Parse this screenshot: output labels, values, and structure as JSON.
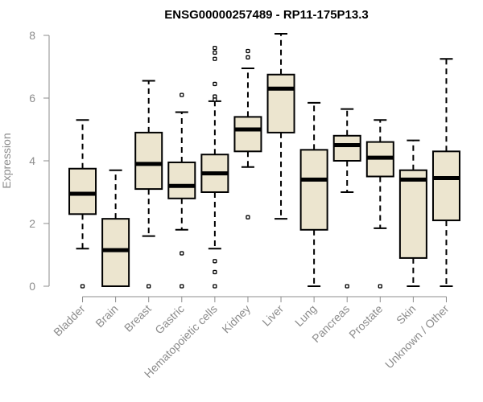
{
  "chart_data": {
    "type": "boxplot",
    "title": "ENSG00000257489 - RP11-175P13.3",
    "xlabel": "",
    "ylabel": "Expression",
    "ylim": [
      0,
      8
    ],
    "yticks": [
      0,
      2,
      4,
      6,
      8
    ],
    "grid": false,
    "box_fill": "#ece5cf",
    "categories": [
      "Bladder",
      "Brain",
      "Breast",
      "Gastric",
      "Hematopoietic cells",
      "Kidney",
      "Liver",
      "Lung",
      "Pancreas",
      "Prostate",
      "Skin",
      "Unknown / Other"
    ],
    "boxes": [
      {
        "label": "Bladder",
        "whisker_low": 1.2,
        "q1": 2.3,
        "median": 2.95,
        "q3": 3.75,
        "whisker_high": 5.3,
        "outliers": [
          0
        ]
      },
      {
        "label": "Brain",
        "whisker_low": 0,
        "q1": 0,
        "median": 1.15,
        "q3": 2.15,
        "whisker_high": 3.7,
        "outliers": []
      },
      {
        "label": "Breast",
        "whisker_low": 1.6,
        "q1": 3.1,
        "median": 3.9,
        "q3": 4.9,
        "whisker_high": 6.55,
        "outliers": [
          0
        ]
      },
      {
        "label": "Gastric",
        "whisker_low": 1.8,
        "q1": 2.8,
        "median": 3.2,
        "q3": 3.95,
        "whisker_high": 5.55,
        "outliers": [
          6.1,
          1.05,
          0
        ]
      },
      {
        "label": "Hematopoietic cells",
        "whisker_low": 1.2,
        "q1": 3.0,
        "median": 3.6,
        "q3": 4.2,
        "whisker_high": 5.9,
        "outliers": [
          7.6,
          7.45,
          7.25,
          6.45,
          6.05,
          5.95,
          0.8,
          0.45,
          0
        ]
      },
      {
        "label": "Kidney",
        "whisker_low": 3.8,
        "q1": 4.3,
        "median": 5.0,
        "q3": 5.4,
        "whisker_high": 6.95,
        "outliers": [
          7.5,
          7.3,
          2.2
        ]
      },
      {
        "label": "Liver",
        "whisker_low": 2.15,
        "q1": 4.9,
        "median": 6.3,
        "q3": 6.75,
        "whisker_high": 8.05,
        "outliers": []
      },
      {
        "label": "Lung",
        "whisker_low": 0,
        "q1": 1.8,
        "median": 3.4,
        "q3": 4.35,
        "whisker_high": 5.85,
        "outliers": []
      },
      {
        "label": "Pancreas",
        "whisker_low": 3.0,
        "q1": 4.0,
        "median": 4.5,
        "q3": 4.8,
        "whisker_high": 5.65,
        "outliers": [
          0
        ]
      },
      {
        "label": "Prostate",
        "whisker_low": 1.85,
        "q1": 3.5,
        "median": 4.1,
        "q3": 4.6,
        "whisker_high": 5.3,
        "outliers": [
          0
        ]
      },
      {
        "label": "Skin",
        "whisker_low": 0,
        "q1": 0.9,
        "median": 3.4,
        "q3": 3.7,
        "whisker_high": 4.65,
        "outliers": []
      },
      {
        "label": "Unknown / Other",
        "whisker_low": 0,
        "q1": 2.1,
        "median": 3.45,
        "q3": 4.3,
        "whisker_high": 7.25,
        "outliers": []
      }
    ]
  }
}
